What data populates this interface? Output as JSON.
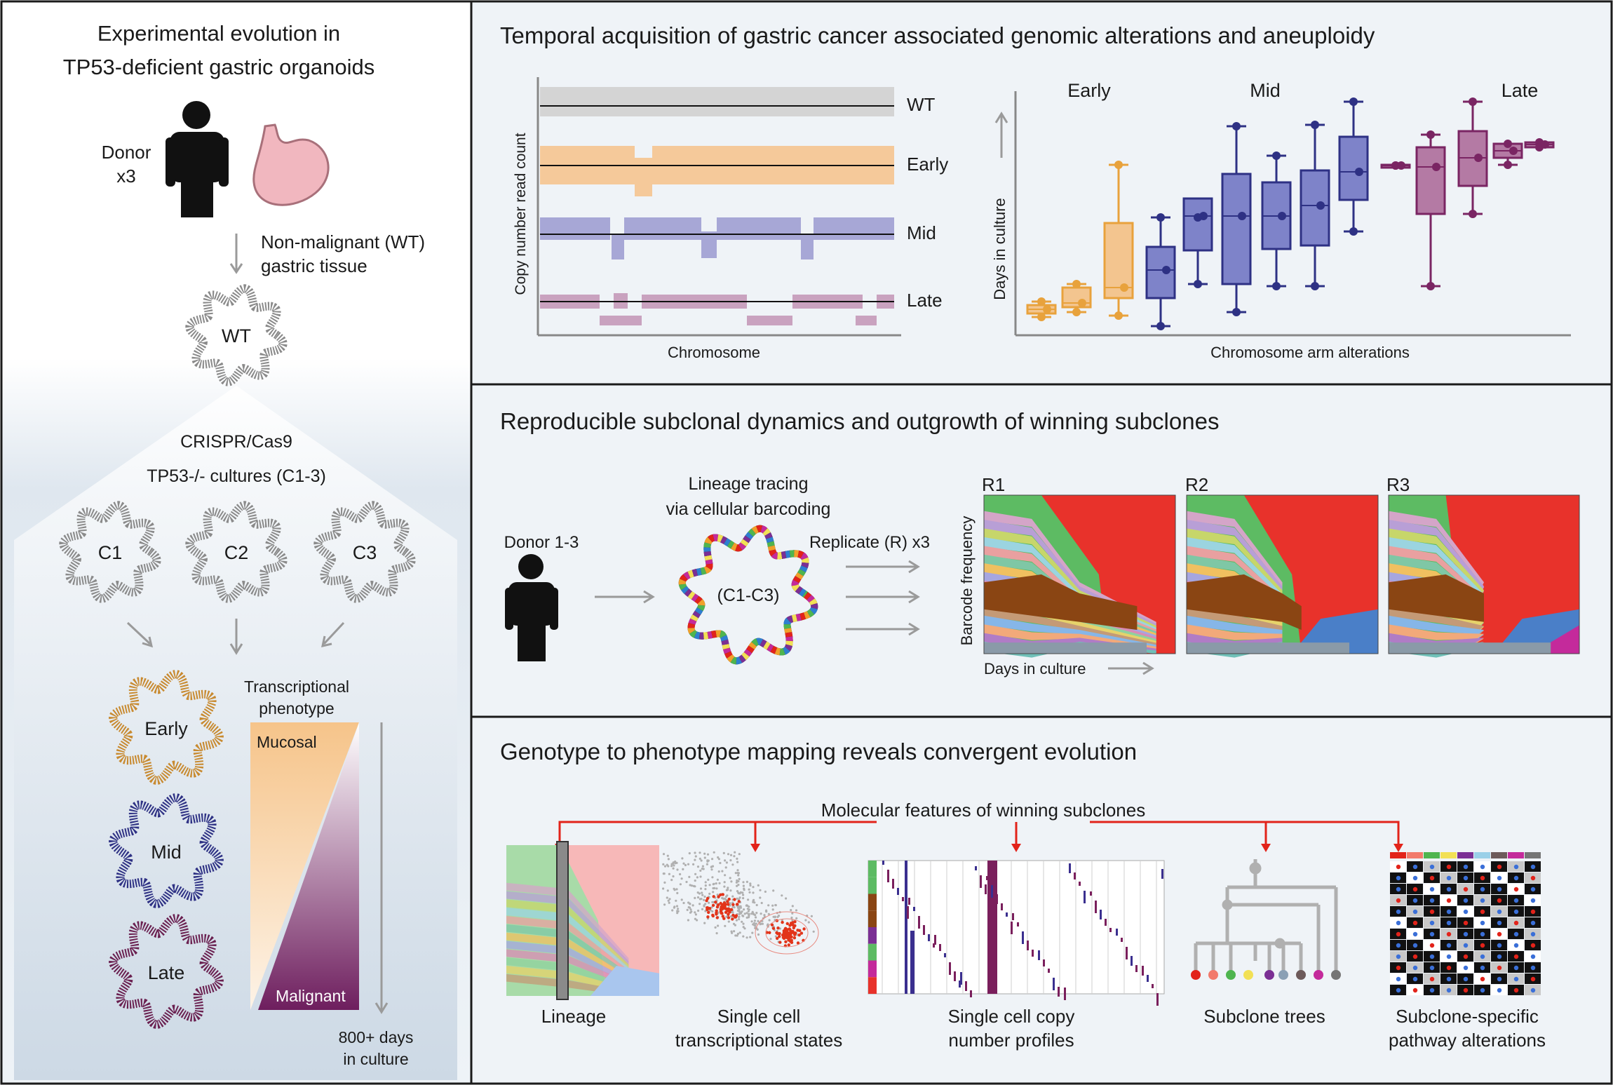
{
  "left_panel": {
    "title_line1": "Experimental evolution in",
    "title_line2": "TP53-deficient gastric organoids",
    "donor_line1": "Donor",
    "donor_line2": "x3",
    "tissue_line1": "Non-malignant (WT)",
    "tissue_line2": "gastric tissue",
    "wt_label": "WT",
    "crispr_label": "CRISPR/Cas9",
    "cultures_label": "TP53-/-   cultures (C1-3)",
    "cultures": [
      "C1",
      "C2",
      "C3"
    ],
    "stages": [
      "Early",
      "Mid",
      "Late"
    ],
    "phenotype_line1": "Transcriptional",
    "phenotype_line2": "phenotype",
    "mucosal_label": "Mucosal",
    "malignant_label": "Malignant",
    "days_line1": "800+ days",
    "days_line2": "in culture"
  },
  "panel_top": {
    "title": "Temporal acquisition of gastric cancer associated genomic alterations and aneuploidy",
    "cn_ylabel": "Copy number read count",
    "cn_xlabel": "Chromosome",
    "cn_tracks": [
      "WT",
      "Early",
      "Mid",
      "Late"
    ],
    "box_ylabel": "Days in culture",
    "box_xlabel": "Chromosome arm alterations",
    "box_groups": [
      "Early",
      "Mid",
      "Late"
    ]
  },
  "panel_mid": {
    "title": "Reproducible subclonal dynamics and outgrowth of winning subclones",
    "donor_label": "Donor 1-3",
    "tracing_line1": "Lineage tracing",
    "tracing_line2": "via cellular barcoding",
    "organoid_label": "(C1-C3)",
    "replicate_label": "Replicate (R) x3",
    "ylabel": "Barcode frequency",
    "xlabel": "Days in culture",
    "replicates": [
      "R1",
      "R2",
      "R3"
    ]
  },
  "panel_bottom": {
    "title": "Genotype to phenotype mapping reveals convergent evolution",
    "features_label": "Molecular features of winning subclones",
    "captions": [
      {
        "line1": "Lineage",
        "line2": ""
      },
      {
        "line1": "Single cell",
        "line2": "transcriptional states"
      },
      {
        "line1": "Single cell copy",
        "line2": "number profiles"
      },
      {
        "line1": "Subclone trees",
        "line2": ""
      },
      {
        "line1": "Subclone-specific",
        "line2": "pathway alterations"
      }
    ]
  },
  "colors": {
    "early": "#e8a23c",
    "mid": "#2e3184",
    "late": "#7a2563",
    "arrow_red": "#e2231a",
    "winner_green": "#5dbb63",
    "winner_red": "#e8322b",
    "brown": "#8a4513",
    "blue": "#4a7fc8"
  }
}
